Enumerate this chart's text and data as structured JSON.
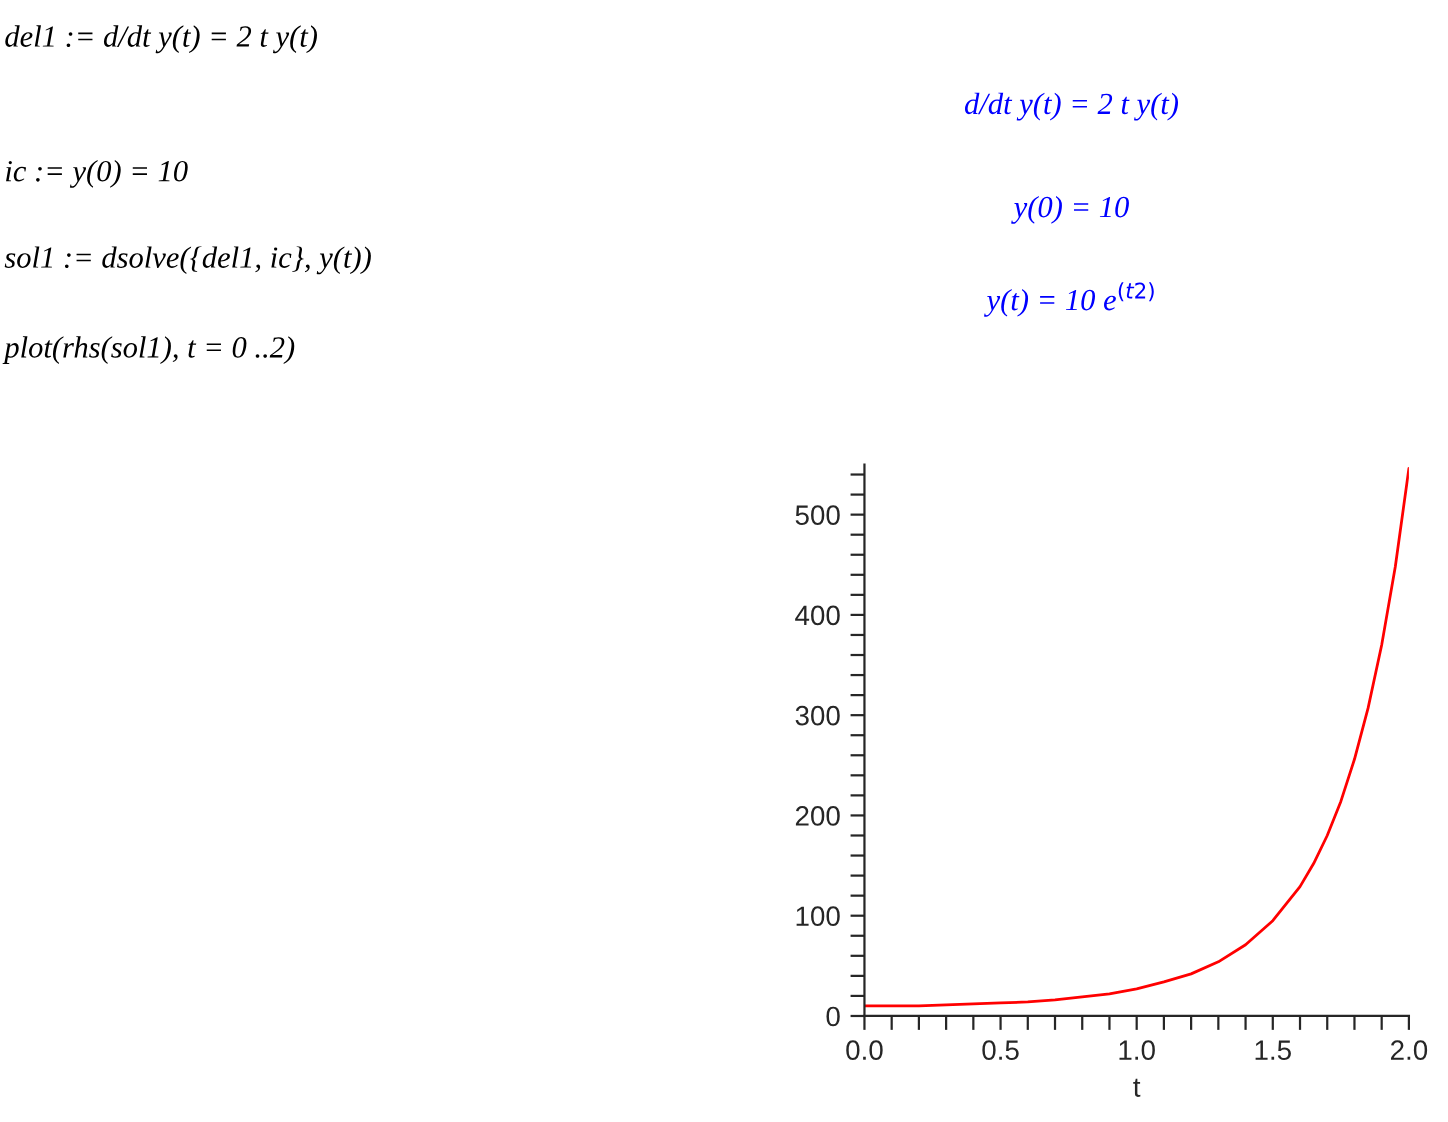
{
  "chart_data": {
    "type": "line",
    "xlabel": "t",
    "annotations": [
      "del1 := d/dt y(t) = 2 t y(t)",
      "d/dt y(t) = 2 t y(t)",
      "ic := y(0) = 10",
      "y(0) = 10",
      "sol1 := dsolve({del1, ic}, y(t))",
      "y(t) = 10 e$^{(t2)}$",
      "plot(rhs(sol1), t = 0 ..2)"
    ],
    "x": [
      0,
      0.1,
      0.2,
      0.3,
      0.4,
      0.5,
      0.6,
      0.7,
      0.8,
      0.9,
      1.0,
      1.1,
      1.2,
      1.3,
      1.4,
      1.5,
      1.6,
      1.65,
      1.7,
      1.75,
      1.8,
      1.85,
      1.9,
      1.95,
      2.0
    ],
    "series": [
      {
        "color": "#ff0000",
        "values": [
          10,
          10,
          10,
          11,
          12,
          13,
          14,
          16,
          19,
          22,
          27,
          34,
          42,
          54,
          71,
          95,
          129,
          152,
          180,
          214,
          256,
          307,
          370,
          448,
          546
        ]
      }
    ],
    "xlim": [
      0,
      2
    ],
    "ylim": [
      0,
      550
    ],
    "xticks": [
      {
        "value": 0,
        "label": "0.0"
      },
      {
        "value": 0.1,
        "label": null
      },
      {
        "value": 0.2,
        "label": null
      },
      {
        "value": 0.3,
        "label": null
      },
      {
        "value": 0.4,
        "label": null
      },
      {
        "value": 0.5,
        "label": "0.5"
      },
      {
        "value": 0.6,
        "label": null
      },
      {
        "value": 0.7,
        "label": null
      },
      {
        "value": 0.8,
        "label": null
      },
      {
        "value": 0.9,
        "label": null
      },
      {
        "value": 1.0,
        "label": "1.0"
      },
      {
        "value": 1.1,
        "label": null
      },
      {
        "value": 1.2,
        "label": null
      },
      {
        "value": 1.3,
        "label": null
      },
      {
        "value": 1.4,
        "label": null
      },
      {
        "value": 1.5,
        "label": "1.5"
      },
      {
        "value": 1.6,
        "label": null
      },
      {
        "value": 1.7,
        "label": null
      },
      {
        "value": 1.8,
        "label": null
      },
      {
        "value": 1.9,
        "label": null
      },
      {
        "value": 2.0,
        "label": "2.0"
      }
    ],
    "yticks": [
      0,
      {
        "value": 20,
        "label": null
      },
      {
        "value": 40,
        "label": null
      },
      {
        "value": 60,
        "label": null
      },
      {
        "value": 80,
        "label": null
      },
      100,
      {
        "value": 120,
        "label": null
      },
      {
        "value": 140,
        "label": null
      },
      {
        "value": 160,
        "label": null
      },
      {
        "value": 180,
        "label": null
      },
      200,
      {
        "value": 220,
        "label": null
      },
      {
        "value": 240,
        "label": null
      },
      {
        "value": 260,
        "label": null
      },
      {
        "value": 280,
        "label": null
      },
      300,
      {
        "value": 320,
        "label": null
      },
      {
        "value": 340,
        "label": null
      },
      {
        "value": 360,
        "label": null
      },
      {
        "value": 380,
        "label": null
      },
      400,
      {
        "value": 420,
        "label": null
      },
      {
        "value": 440,
        "label": null
      },
      {
        "value": 460,
        "label": null
      },
      {
        "value": 480,
        "label": null
      },
      500,
      {
        "value": 520,
        "label": null
      },
      {
        "value": 540,
        "label": null
      }
    ],
    "grid": false,
    "marker": "none",
    "line_style": "solid"
  }
}
